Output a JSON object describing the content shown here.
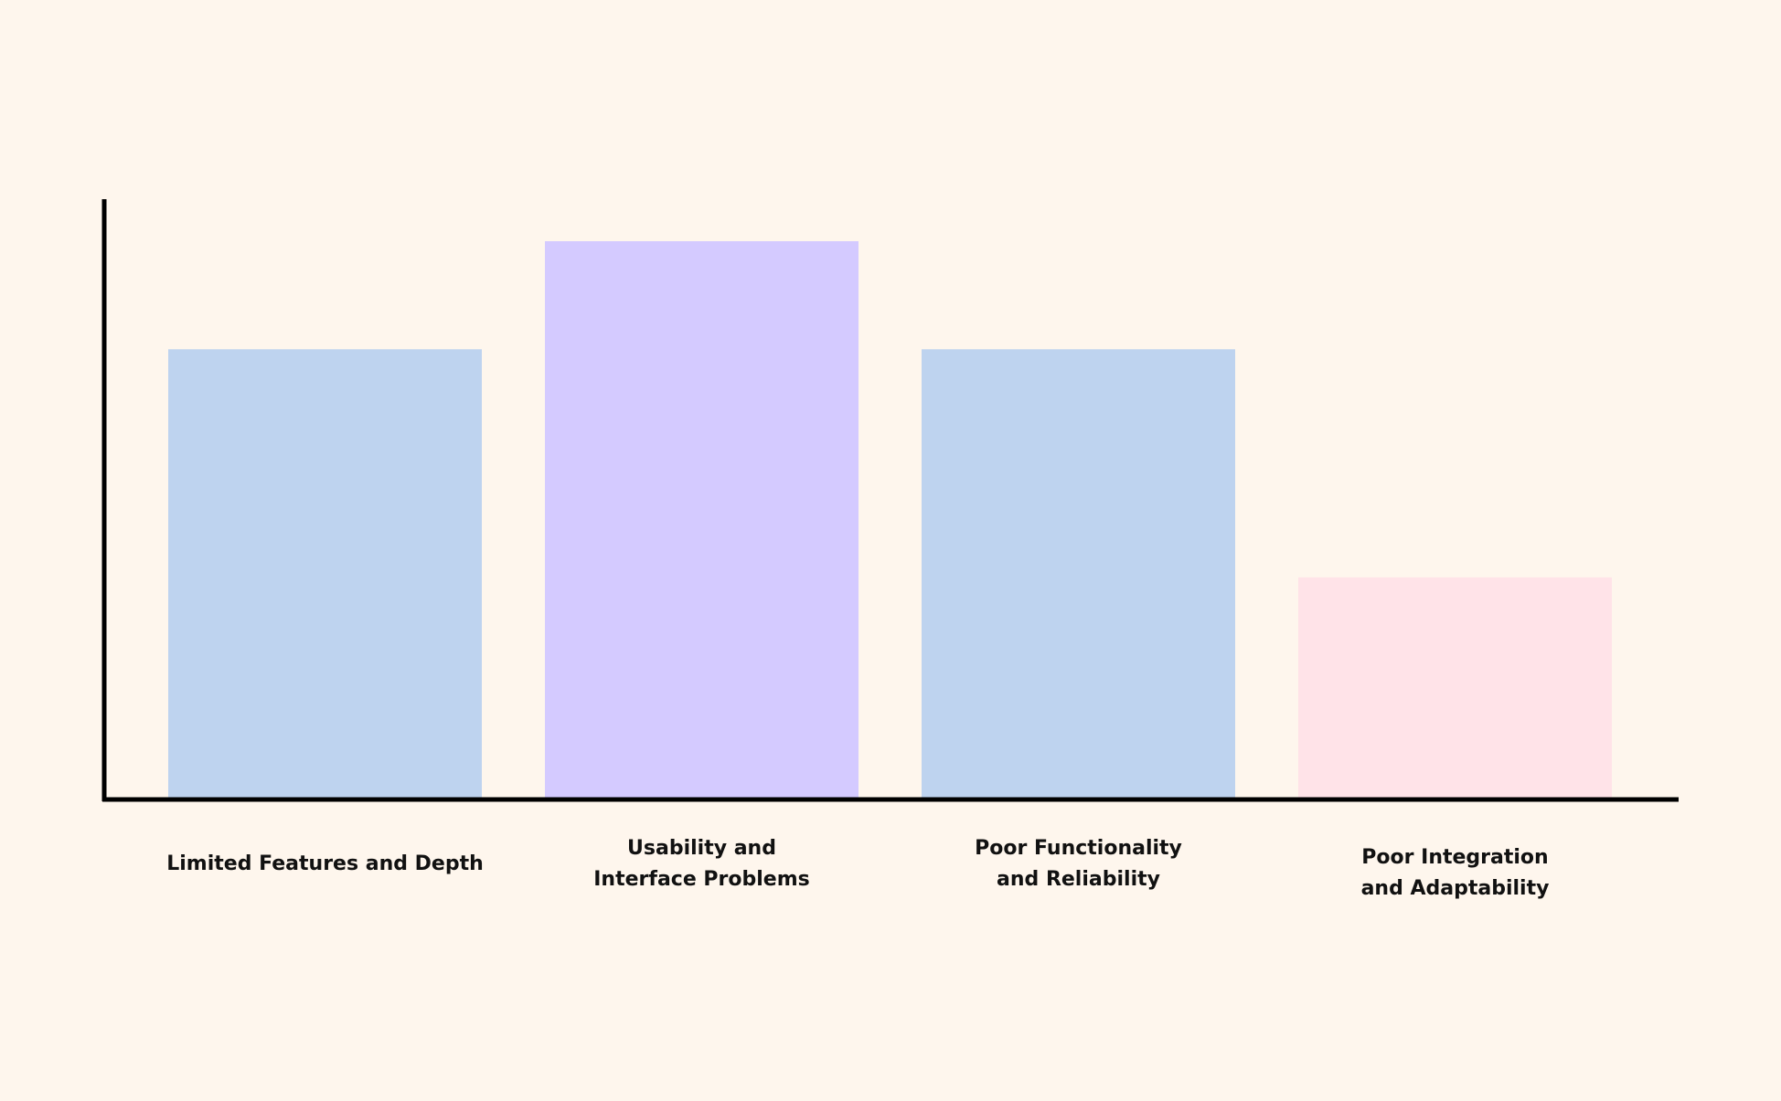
{
  "background": "#fef6ed",
  "chart_data": {
    "type": "bar",
    "title": "",
    "xlabel": "",
    "ylabel": "",
    "ylim": [
      0,
      1
    ],
    "grid": false,
    "categories": [
      "Limited Features and Depth",
      "Usability and\nInterface Problems",
      "Poor Functionality\nand Reliability",
      "Poor Integration\nand Adaptability"
    ],
    "values": [
      0.75,
      0.93,
      0.75,
      0.37
    ],
    "colors": [
      "#bed3ef",
      "#d4caff",
      "#bed3ef",
      "#ffe3e8"
    ],
    "axis_color": "#000000"
  }
}
